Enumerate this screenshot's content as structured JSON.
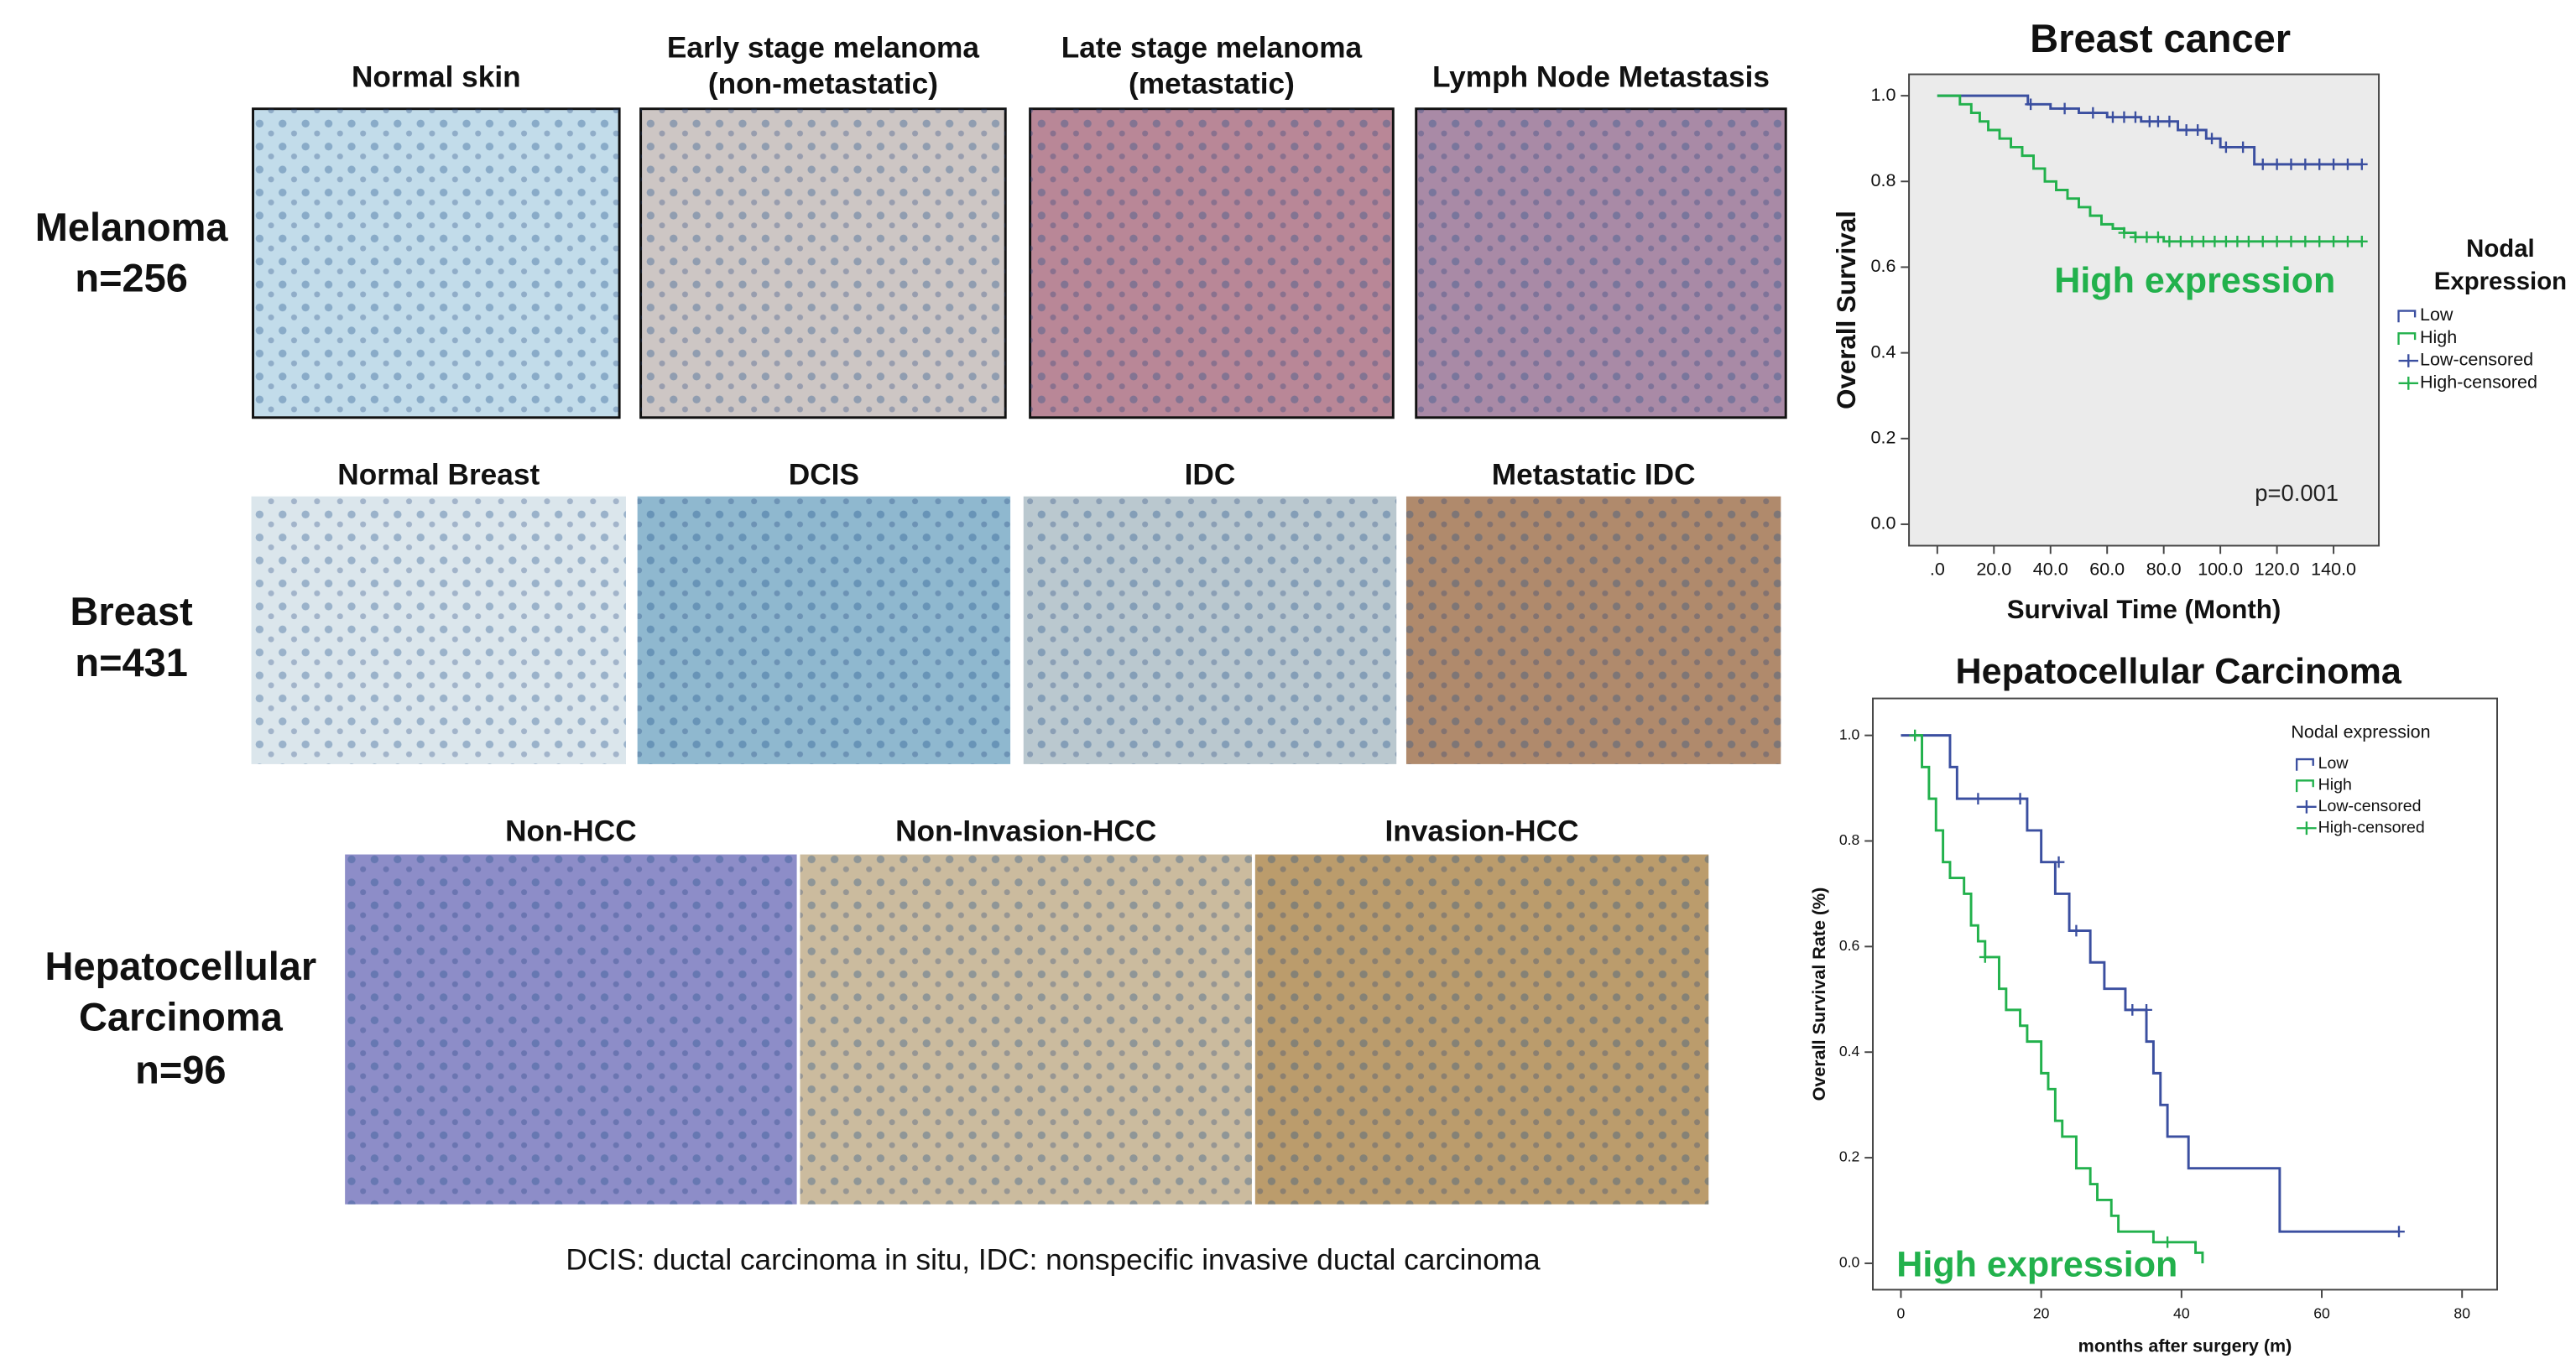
{
  "figure": {
    "rows": [
      {
        "label": [
          "Melanoma",
          "n=256"
        ],
        "images": [
          [
            "Normal skin"
          ],
          [
            "Early stage melanoma",
            "(non-metastatic)"
          ],
          [
            "Late stage melanoma",
            "(metastatic)"
          ],
          [
            "Lymph Node Metastasis"
          ]
        ]
      },
      {
        "label": [
          "Breast",
          "n=431"
        ],
        "images": [
          [
            "Normal Breast"
          ],
          [
            "DCIS"
          ],
          [
            "IDC"
          ],
          [
            "Metastatic IDC"
          ]
        ]
      },
      {
        "label": [
          "Hepatocellular",
          "Carcinoma",
          "n=96"
        ],
        "images": [
          [
            "Non-HCC"
          ],
          [
            "Non-Invasion-HCC"
          ],
          [
            "Invasion-HCC"
          ]
        ]
      }
    ],
    "footnote": "DCIS: ductal carcinoma in situ, IDC: nonspecific invasive ductal carcinoma"
  },
  "chart_data": [
    {
      "type": "line",
      "title": "Breast cancer",
      "x_label": "Survival Time (Month)",
      "y_label": "Overall Survival",
      "xlim": [
        -10,
        156
      ],
      "ylim": [
        -0.05,
        1.05
      ],
      "xticks": [
        {
          "value": 0,
          "label": ".0"
        },
        {
          "value": 20,
          "label": "20.0"
        },
        {
          "value": 40,
          "label": "40.0"
        },
        {
          "value": 60,
          "label": "60.0"
        },
        {
          "value": 80,
          "label": "80.0"
        },
        {
          "value": 100,
          "label": "100.0"
        },
        {
          "value": 120,
          "label": "120.0"
        },
        {
          "value": 140,
          "label": "140.0"
        }
      ],
      "yticks": [
        {
          "value": 0,
          "label": "0.0"
        },
        0.2,
        0.4,
        0.6,
        0.8,
        {
          "value": 1,
          "label": "1.0"
        }
      ],
      "legend_title": [
        "Nodal",
        "Expression"
      ],
      "annotations": [
        {
          "text": "High expression",
          "color": "#22b14c"
        },
        {
          "text": "p=0.001",
          "color": "#222222"
        }
      ],
      "series": [
        {
          "name": "Low",
          "color": "#3b4fa0",
          "style": "step",
          "x": [
            0,
            32,
            40,
            50,
            60,
            72,
            85,
            95,
            100,
            112,
            150
          ],
          "values": [
            1,
            0.98,
            0.97,
            0.96,
            0.95,
            0.94,
            0.92,
            0.9,
            0.88,
            0.84,
            0.84
          ]
        },
        {
          "name": "High",
          "color": "#22b14c",
          "style": "step",
          "x": [
            0,
            8,
            12,
            15,
            18,
            22,
            26,
            30,
            34,
            38,
            42,
            46,
            50,
            54,
            58,
            62,
            66,
            70,
            80,
            150
          ],
          "values": [
            1,
            0.98,
            0.96,
            0.94,
            0.92,
            0.9,
            0.88,
            0.86,
            0.83,
            0.8,
            0.78,
            0.76,
            0.74,
            0.72,
            0.7,
            0.69,
            0.68,
            0.67,
            0.66,
            0.66
          ]
        },
        {
          "name": "Low-censored",
          "color": "#3b4fa0",
          "style": "censor",
          "x": [
            33,
            45,
            55,
            62,
            66,
            70,
            75,
            78,
            82,
            88,
            92,
            97,
            102,
            108,
            115,
            120,
            125,
            130,
            135,
            140,
            145,
            150
          ],
          "values": [
            0.98,
            0.97,
            0.96,
            0.95,
            0.95,
            0.95,
            0.94,
            0.94,
            0.94,
            0.92,
            0.92,
            0.9,
            0.88,
            0.88,
            0.84,
            0.84,
            0.84,
            0.84,
            0.84,
            0.84,
            0.84,
            0.84
          ]
        },
        {
          "name": "High-censored",
          "color": "#22b14c",
          "style": "censor",
          "x": [
            66,
            70,
            74,
            78,
            82,
            86,
            90,
            94,
            98,
            102,
            106,
            110,
            115,
            120,
            125,
            130,
            135,
            140,
            145,
            150
          ],
          "values": [
            0.68,
            0.67,
            0.67,
            0.67,
            0.66,
            0.66,
            0.66,
            0.66,
            0.66,
            0.66,
            0.66,
            0.66,
            0.66,
            0.66,
            0.66,
            0.66,
            0.66,
            0.66,
            0.66,
            0.66
          ]
        }
      ]
    },
    {
      "type": "line",
      "title": "Hepatocellular Carcinoma",
      "x_label": "months after surgery (m)",
      "y_label": "Overall Survival Rate (%)",
      "xlim": [
        -4,
        85
      ],
      "ylim": [
        -0.05,
        1.07
      ],
      "xticks": [
        0,
        20,
        40,
        60,
        80
      ],
      "yticks": [
        {
          "value": 0,
          "label": "0.0"
        },
        0.2,
        0.4,
        0.6,
        0.8,
        {
          "value": 1,
          "label": "1.0"
        }
      ],
      "legend_title": [
        "Nodal expression"
      ],
      "annotations": [
        {
          "text": "High expression",
          "color": "#22b14c"
        }
      ],
      "series": [
        {
          "name": "Low",
          "color": "#3b4fa0",
          "style": "step",
          "x": [
            0,
            7,
            8,
            18,
            20,
            22,
            24,
            27,
            29,
            32,
            35,
            36,
            37,
            38,
            41,
            54,
            71
          ],
          "values": [
            1,
            0.94,
            0.88,
            0.82,
            0.76,
            0.7,
            0.63,
            0.57,
            0.52,
            0.48,
            0.42,
            0.36,
            0.3,
            0.24,
            0.18,
            0.06,
            0.06
          ]
        },
        {
          "name": "High",
          "color": "#22b14c",
          "style": "step",
          "x": [
            2,
            3,
            4,
            5,
            6,
            7,
            9,
            10,
            11,
            12,
            14,
            15,
            17,
            18,
            20,
            21,
            22,
            23,
            25,
            27,
            28,
            30,
            31,
            36,
            42,
            43
          ],
          "values": [
            1,
            0.94,
            0.88,
            0.82,
            0.76,
            0.73,
            0.7,
            0.64,
            0.61,
            0.58,
            0.52,
            0.48,
            0.45,
            0.42,
            0.36,
            0.33,
            0.27,
            0.24,
            0.18,
            0.15,
            0.12,
            0.09,
            0.06,
            0.04,
            0.02,
            0
          ]
        },
        {
          "name": "Low-censored",
          "color": "#3b4fa0",
          "style": "censor",
          "x": [
            11,
            17,
            22.5,
            25,
            33,
            35,
            71
          ],
          "values": [
            0.88,
            0.88,
            0.76,
            0.63,
            0.48,
            0.48,
            0.06
          ]
        },
        {
          "name": "High-censored",
          "color": "#22b14c",
          "style": "censor",
          "x": [
            2,
            12,
            38
          ],
          "values": [
            1,
            0.58,
            0.04
          ]
        }
      ]
    }
  ]
}
